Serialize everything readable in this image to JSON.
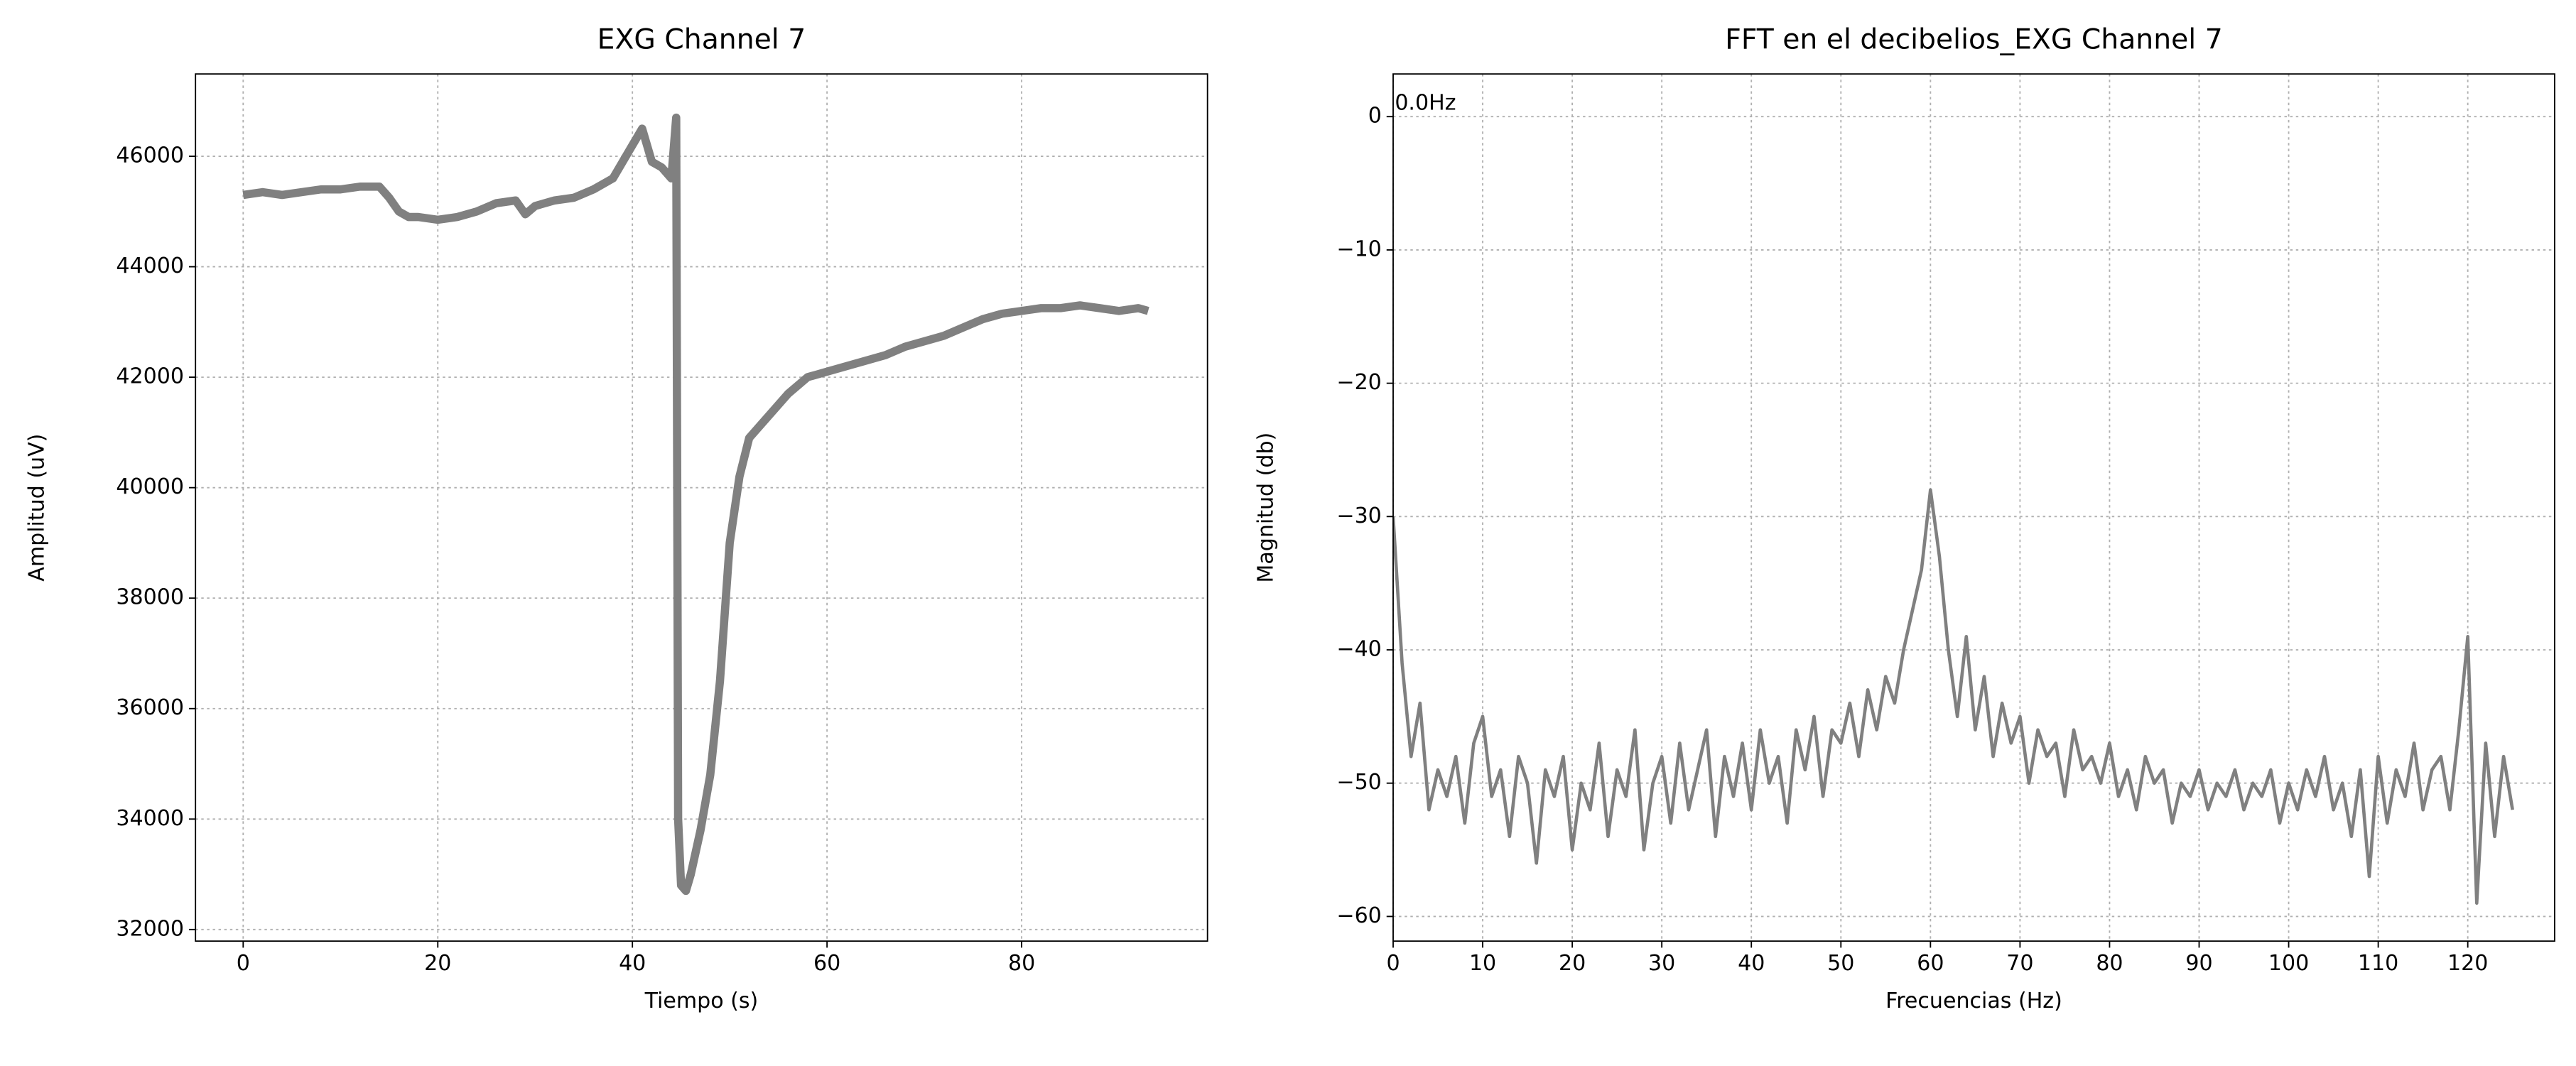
{
  "chart_data": [
    {
      "type": "line",
      "title": "EXG Channel 7",
      "xlabel": "Tiempo (s)",
      "ylabel": "Amplitud (uV)",
      "x": [
        0,
        2,
        4,
        6,
        8,
        10,
        12,
        14,
        15,
        16,
        17,
        18,
        20,
        22,
        24,
        26,
        28,
        29,
        30,
        32,
        34,
        36,
        38,
        39,
        40,
        41,
        42,
        43,
        44,
        44.5,
        44.7,
        45,
        45.5,
        46,
        47,
        48,
        49,
        50,
        51,
        52,
        54,
        56,
        58,
        60,
        62,
        64,
        66,
        68,
        70,
        72,
        74,
        76,
        78,
        80,
        82,
        84,
        86,
        88,
        90,
        92,
        93
      ],
      "series": [
        {
          "color": "#808080",
          "values": [
            45300,
            45350,
            45300,
            45350,
            45400,
            45400,
            45450,
            45450,
            45250,
            45000,
            44900,
            44900,
            44850,
            44900,
            45000,
            45150,
            45200,
            44950,
            45100,
            45200,
            45250,
            45400,
            45600,
            45900,
            46200,
            46500,
            45900,
            45800,
            45600,
            46700,
            34000,
            32800,
            32700,
            33000,
            33800,
            34800,
            36500,
            39000,
            40200,
            40900,
            41300,
            41700,
            42000,
            42100,
            42200,
            42300,
            42400,
            42550,
            42650,
            42750,
            42900,
            43050,
            43150,
            43200,
            43250,
            43250,
            43300,
            43250,
            43200,
            43250,
            43200
          ]
        }
      ],
      "xlim": [
        -4.9,
        99.1
      ],
      "ylim": [
        31790,
        47490
      ],
      "xticks": [
        0,
        20,
        40,
        60,
        80
      ],
      "yticks": [
        32000,
        34000,
        36000,
        38000,
        40000,
        42000,
        44000,
        46000
      ],
      "grid": true
    },
    {
      "type": "line",
      "title": "FFT en el decibelios_EXG Channel 7",
      "xlabel": "Frecuencias (Hz)",
      "ylabel": "Magnitud (db)",
      "annotation": "0.0Hz",
      "x": [
        0,
        1,
        2,
        3,
        4,
        5,
        6,
        7,
        8,
        9,
        10,
        11,
        12,
        13,
        14,
        15,
        16,
        17,
        18,
        19,
        20,
        21,
        22,
        23,
        24,
        25,
        26,
        27,
        28,
        29,
        30,
        31,
        32,
        33,
        34,
        35,
        36,
        37,
        38,
        39,
        40,
        41,
        42,
        43,
        44,
        45,
        46,
        47,
        48,
        49,
        50,
        51,
        52,
        53,
        54,
        55,
        56,
        57,
        58,
        59,
        60,
        61,
        62,
        63,
        64,
        65,
        66,
        67,
        68,
        69,
        70,
        71,
        72,
        73,
        74,
        75,
        76,
        77,
        78,
        79,
        80,
        81,
        82,
        83,
        84,
        85,
        86,
        87,
        88,
        89,
        90,
        91,
        92,
        93,
        94,
        95,
        96,
        97,
        98,
        99,
        100,
        101,
        102,
        103,
        104,
        105,
        106,
        107,
        108,
        109,
        110,
        111,
        112,
        113,
        114,
        115,
        116,
        117,
        118,
        119,
        120,
        121,
        122,
        123,
        124,
        125
      ],
      "series": [
        {
          "color": "#808080",
          "values": [
            -30,
            -41,
            -48,
            -44,
            -52,
            -49,
            -51,
            -48,
            -53,
            -47,
            -45,
            -51,
            -49,
            -54,
            -48,
            -50,
            -56,
            -49,
            -51,
            -48,
            -55,
            -50,
            -52,
            -47,
            -54,
            -49,
            -51,
            -46,
            -55,
            -50,
            -48,
            -53,
            -47,
            -52,
            -49,
            -46,
            -54,
            -48,
            -51,
            -47,
            -52,
            -46,
            -50,
            -48,
            -53,
            -46,
            -49,
            -45,
            -51,
            -46,
            -47,
            -44,
            -48,
            -43,
            -46,
            -42,
            -44,
            -40,
            -37,
            -34,
            -28,
            -33,
            -40,
            -45,
            -39,
            -46,
            -42,
            -48,
            -44,
            -47,
            -45,
            -50,
            -46,
            -48,
            -47,
            -51,
            -46,
            -49,
            -48,
            -50,
            -47,
            -51,
            -49,
            -52,
            -48,
            -50,
            -49,
            -53,
            -50,
            -51,
            -49,
            -52,
            -50,
            -51,
            -49,
            -52,
            -50,
            -51,
            -49,
            -53,
            -50,
            -52,
            -49,
            -51,
            -48,
            -52,
            -50,
            -54,
            -49,
            -57,
            -48,
            -53,
            -49,
            -51,
            -47,
            -52,
            -49,
            -48,
            -52,
            -46,
            -39,
            -59,
            -47,
            -54,
            -48,
            -52
          ]
        }
      ],
      "xlim": [
        0,
        129.7
      ],
      "ylim": [
        -61.85,
        3.2
      ],
      "xticks": [
        0,
        10,
        20,
        30,
        40,
        50,
        60,
        70,
        80,
        90,
        100,
        110,
        120
      ],
      "yticks": [
        {
          "value": -60,
          "label": "−60"
        },
        {
          "value": -50,
          "label": "−50"
        },
        {
          "value": -40,
          "label": "−40"
        },
        {
          "value": -30,
          "label": "−30"
        },
        {
          "value": -20,
          "label": "−20"
        },
        {
          "value": -10,
          "label": "−10"
        },
        0
      ],
      "grid": true
    }
  ]
}
